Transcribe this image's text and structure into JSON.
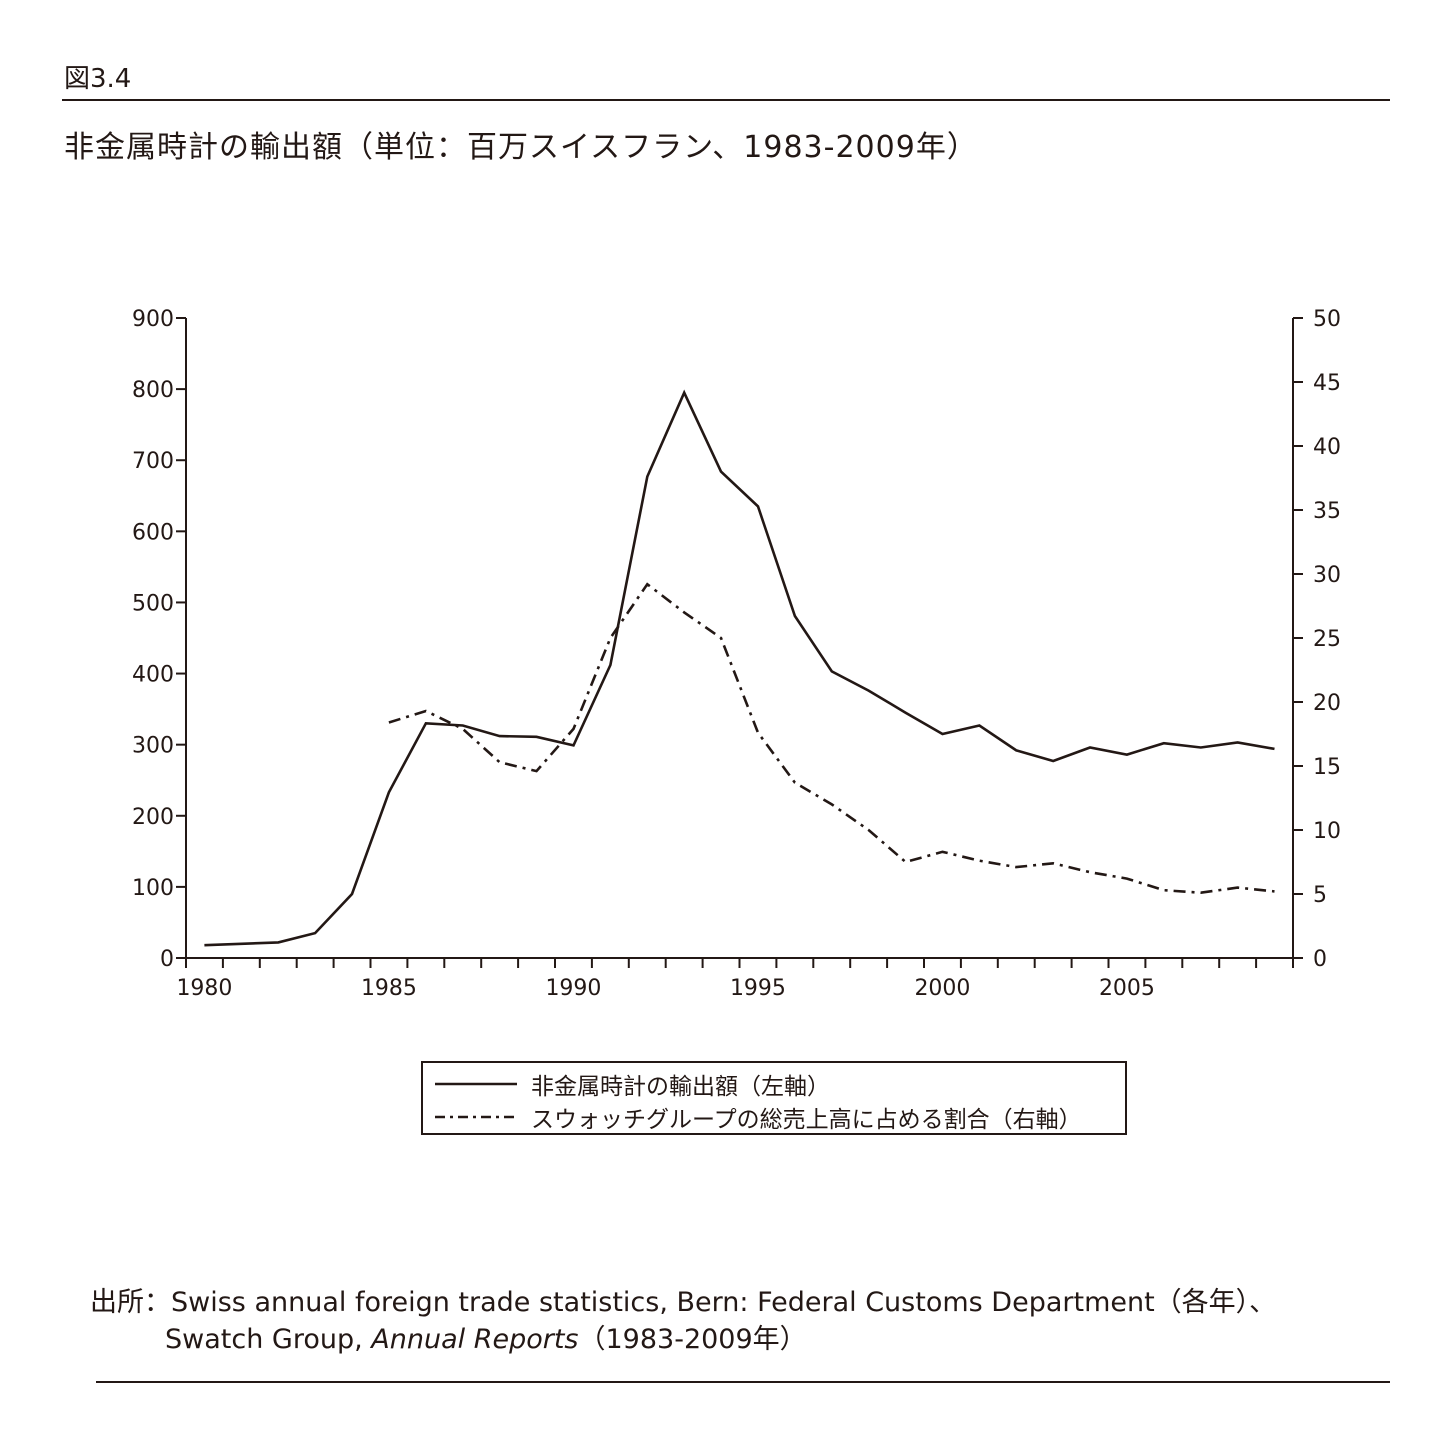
{
  "figure_label": "図3.4",
  "title": "非金属時計の輸出額（単位：百万スイスフラン、1983-2009年）",
  "legend": {
    "series1": "非金属時計の輸出額（左軸）",
    "series2": "スウォッチグループの総売上高に占める割合（右軸）"
  },
  "source": {
    "label": "出所：",
    "line1": "Swiss annual foreign trade statistics, Bern: Federal Customs Department（各年）、",
    "line2_prefix": "Swatch Group, ",
    "line2_italic": "Annual Reports",
    "line2_suffix": "（1983-2009年）"
  },
  "colors": {
    "ink": "#231815"
  },
  "chart_data": {
    "type": "line",
    "x_ticks": [
      1980,
      1985,
      1990,
      1995,
      2000,
      2005
    ],
    "x_range": [
      1979.5,
      2009.5
    ],
    "y_left": {
      "range": [
        0,
        900
      ],
      "ticks": [
        0,
        100,
        200,
        300,
        400,
        500,
        600,
        700,
        800,
        900
      ]
    },
    "y_right": {
      "range": [
        0,
        50
      ],
      "ticks": [
        0,
        5,
        10,
        15,
        20,
        25,
        30,
        35,
        40,
        45,
        50
      ]
    },
    "series": [
      {
        "name": "非金属時計の輸出額（左軸）",
        "axis": "left",
        "style": "solid",
        "x": [
          1980,
          1982,
          1983,
          1984,
          1985,
          1986,
          1987,
          1988,
          1989,
          1990,
          1991,
          1992,
          1993,
          1994,
          1995,
          1996,
          1997,
          1998,
          1999,
          2000,
          2001,
          2002,
          2003,
          2004,
          2005,
          2006,
          2007,
          2008,
          2009
        ],
        "values": [
          18,
          22,
          35,
          90,
          233,
          330,
          327,
          312,
          311,
          299,
          412,
          677,
          795,
          684,
          635,
          481,
          403,
          376,
          345,
          315,
          327,
          292,
          277,
          296,
          286,
          302,
          296,
          303,
          294
        ]
      },
      {
        "name": "スウォッチグループの総売上高に占める割合（右軸）",
        "axis": "right",
        "style": "dash-dot",
        "x": [
          1985,
          1986,
          1987,
          1988,
          1989,
          1990,
          1991,
          1992,
          1993,
          1994,
          1995,
          1996,
          1997,
          1998,
          1999,
          2000,
          2001,
          2002,
          2003,
          2004,
          2005,
          2006,
          2007,
          2008,
          2009
        ],
        "values": [
          18.4,
          19.3,
          17.9,
          15.3,
          14.6,
          17.9,
          25.0,
          29.2,
          27.0,
          25.0,
          17.6,
          13.7,
          12.0,
          10.0,
          7.5,
          8.3,
          7.6,
          7.1,
          7.4,
          6.7,
          6.2,
          5.3,
          5.1,
          5.5,
          5.2
        ]
      }
    ]
  }
}
